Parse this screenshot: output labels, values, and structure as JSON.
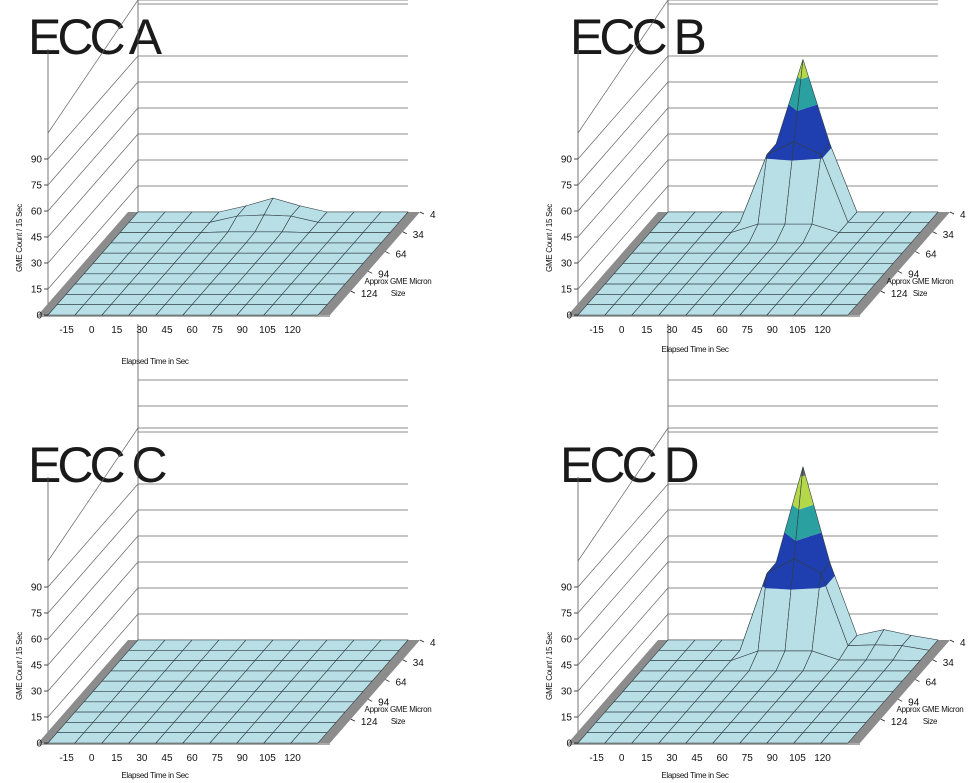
{
  "chart_data": [
    {
      "type": "surface",
      "title": "ECC A",
      "ylabel": "GME Count / 15 Sec",
      "xlabel": "Elapsed Time in Sec",
      "zlabel_line1": "Approx GME Micron",
      "zlabel_line2": "Size",
      "x_ticks": [
        "-15",
        "0",
        "15",
        "30",
        "45",
        "60",
        "75",
        "90",
        "105",
        "120"
      ],
      "y_ticks": [
        "0",
        "15",
        "30",
        "45",
        "60",
        "75",
        "90"
      ],
      "z_ticks": [
        "4",
        "34",
        "64",
        "94",
        "124"
      ],
      "ylim": [
        0,
        90
      ],
      "peaks": [
        {
          "time": 60,
          "size": 4,
          "height": 8
        }
      ]
    },
    {
      "type": "surface",
      "title": "ECC B",
      "ylabel": "GME Count / 15 Sec",
      "xlabel": "Elapsed Time in Sec",
      "zlabel_line1": "Approx GME Micron",
      "zlabel_line2": "Size",
      "x_ticks": [
        "-15",
        "0",
        "15",
        "30",
        "45",
        "60",
        "75",
        "90",
        "105",
        "120"
      ],
      "y_ticks": [
        "0",
        "15",
        "30",
        "45",
        "60",
        "75",
        "90"
      ],
      "z_ticks": [
        "4",
        "34",
        "64",
        "94",
        "124"
      ],
      "ylim": [
        0,
        90
      ],
      "peaks": [
        {
          "time": 60,
          "size": 4,
          "height": 88
        }
      ]
    },
    {
      "type": "surface",
      "title": "ECC C",
      "ylabel": "GME Count / 15 Sec",
      "xlabel": "Elapsed Time in Sec",
      "zlabel_line1": "Approx GME Micron",
      "zlabel_line2": "Size",
      "x_ticks": [
        "-15",
        "0",
        "15",
        "30",
        "45",
        "60",
        "75",
        "90",
        "105",
        "120"
      ],
      "y_ticks": [
        "0",
        "15",
        "30",
        "45",
        "60",
        "75",
        "90"
      ],
      "z_ticks": [
        "4",
        "34",
        "64",
        "94",
        "124"
      ],
      "ylim": [
        0,
        90
      ],
      "peaks": []
    },
    {
      "type": "surface",
      "title": "ECC D",
      "ylabel": "GME Count / 15 Sec",
      "xlabel": "Elapsed Time in Sec",
      "zlabel_line1": "Approx GME Micron",
      "zlabel_line2": "Size",
      "x_ticks": [
        "-15",
        "0",
        "15",
        "30",
        "45",
        "60",
        "75",
        "90",
        "105",
        "120"
      ],
      "y_ticks": [
        "0",
        "15",
        "30",
        "45",
        "60",
        "75",
        "90"
      ],
      "z_ticks": [
        "4",
        "34",
        "64",
        "94",
        "124"
      ],
      "ylim": [
        0,
        90
      ],
      "peaks": [
        {
          "time": 60,
          "size": 4,
          "height": 100
        },
        {
          "time": 105,
          "size": 4,
          "height": 6
        }
      ]
    }
  ],
  "colors": {
    "surface": "#b9dfe6",
    "grid_line": "#2f3e44",
    "floor_edge": "#8c8c8c",
    "band_low": "#b9dfe6",
    "band_2": "#1f3fb0",
    "band_3": "#2aa0a0",
    "band_4": "#b4d84a",
    "band_top": "#666666"
  }
}
